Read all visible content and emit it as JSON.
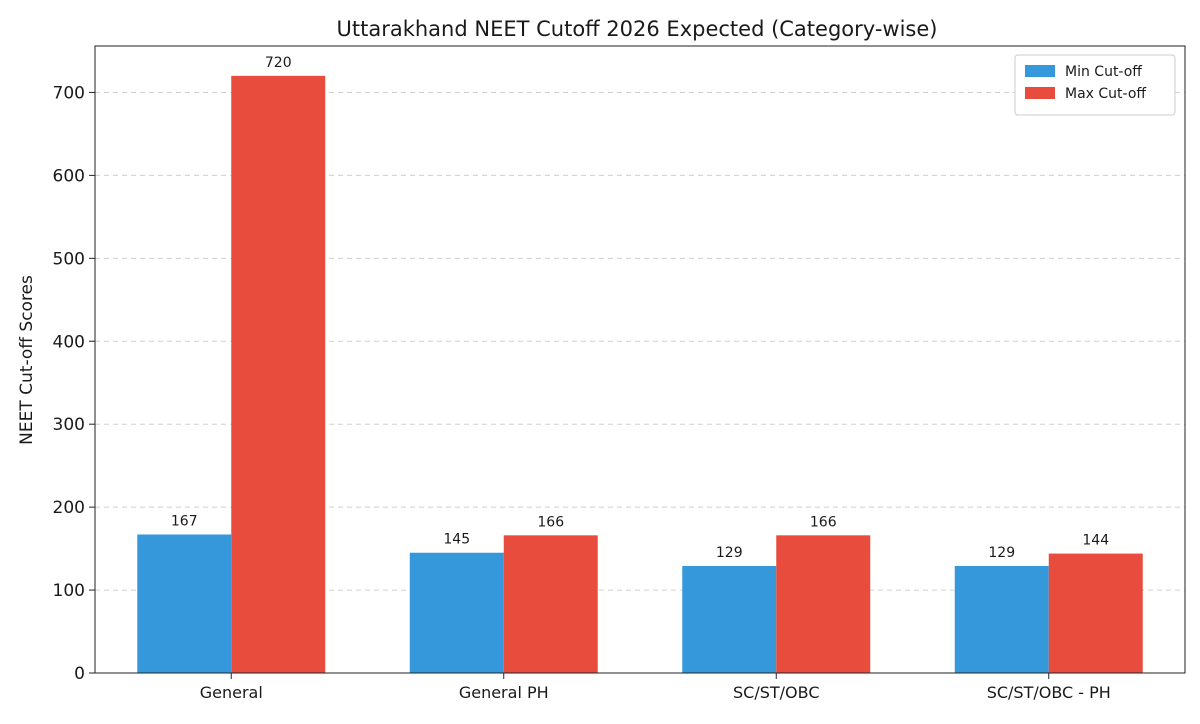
{
  "chart_data": {
    "type": "bar",
    "title": "Uttarakhand NEET Cutoff 2026 Expected (Category-wise)",
    "xlabel": "",
    "ylabel": "NEET Cut-off Scores",
    "categories": [
      "General",
      "General PH",
      "SC/ST/OBC",
      "SC/ST/OBC - PH"
    ],
    "series": [
      {
        "name": "Min Cut-off",
        "color": "#3498db",
        "values": [
          167,
          145,
          129,
          129
        ]
      },
      {
        "name": "Max Cut-off",
        "color": "#e74c3c",
        "values": [
          720,
          166,
          166,
          144
        ]
      }
    ],
    "ylim": [
      0,
      756
    ],
    "yticks": [
      0,
      100,
      200,
      300,
      400,
      500,
      600,
      700
    ],
    "grid": "horizontal-dashed",
    "legend_position": "top-right",
    "data_labels": true
  }
}
